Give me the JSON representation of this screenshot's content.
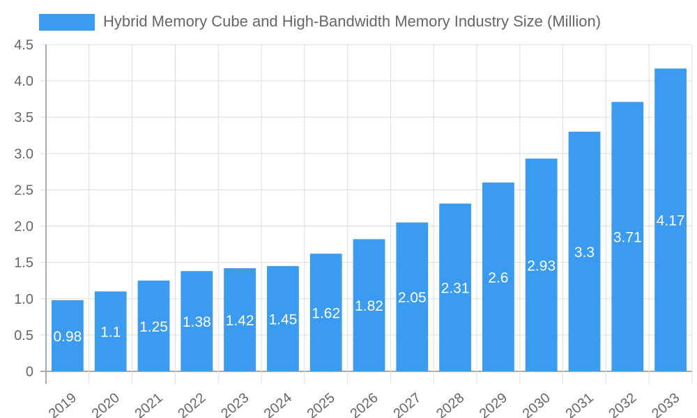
{
  "chart_data": {
    "type": "bar",
    "title": "",
    "legend": [
      "Hybrid Memory Cube and High-Bandwidth Memory Industry Size (Million)"
    ],
    "legend_position": "top",
    "categories": [
      "2019",
      "2020",
      "2021",
      "2022",
      "2023",
      "2024",
      "2025",
      "2026",
      "2027",
      "2028",
      "2029",
      "2030",
      "2031",
      "2032",
      "2033"
    ],
    "series": [
      {
        "name": "Hybrid Memory Cube and High-Bandwidth Memory Industry Size (Million)",
        "values": [
          0.98,
          1.1,
          1.25,
          1.38,
          1.42,
          1.45,
          1.62,
          1.82,
          2.05,
          2.31,
          2.6,
          2.93,
          3.3,
          3.71,
          4.17
        ],
        "color": "#3a9bf0"
      }
    ],
    "data_labels": [
      "0.98",
      "1.1",
      "1.25",
      "1.38",
      "1.42",
      "1.45",
      "1.62",
      "1.82",
      "2.05",
      "2.31",
      "2.6",
      "2.93",
      "3.3",
      "3.71",
      "4.17"
    ],
    "y_ticks": [
      "0",
      "0.5",
      "1.0",
      "1.5",
      "2.0",
      "2.5",
      "3.0",
      "3.5",
      "4.0",
      "4.5"
    ],
    "ylim": [
      0,
      4.5
    ],
    "xlabel": "",
    "ylabel": "",
    "grid": true
  }
}
